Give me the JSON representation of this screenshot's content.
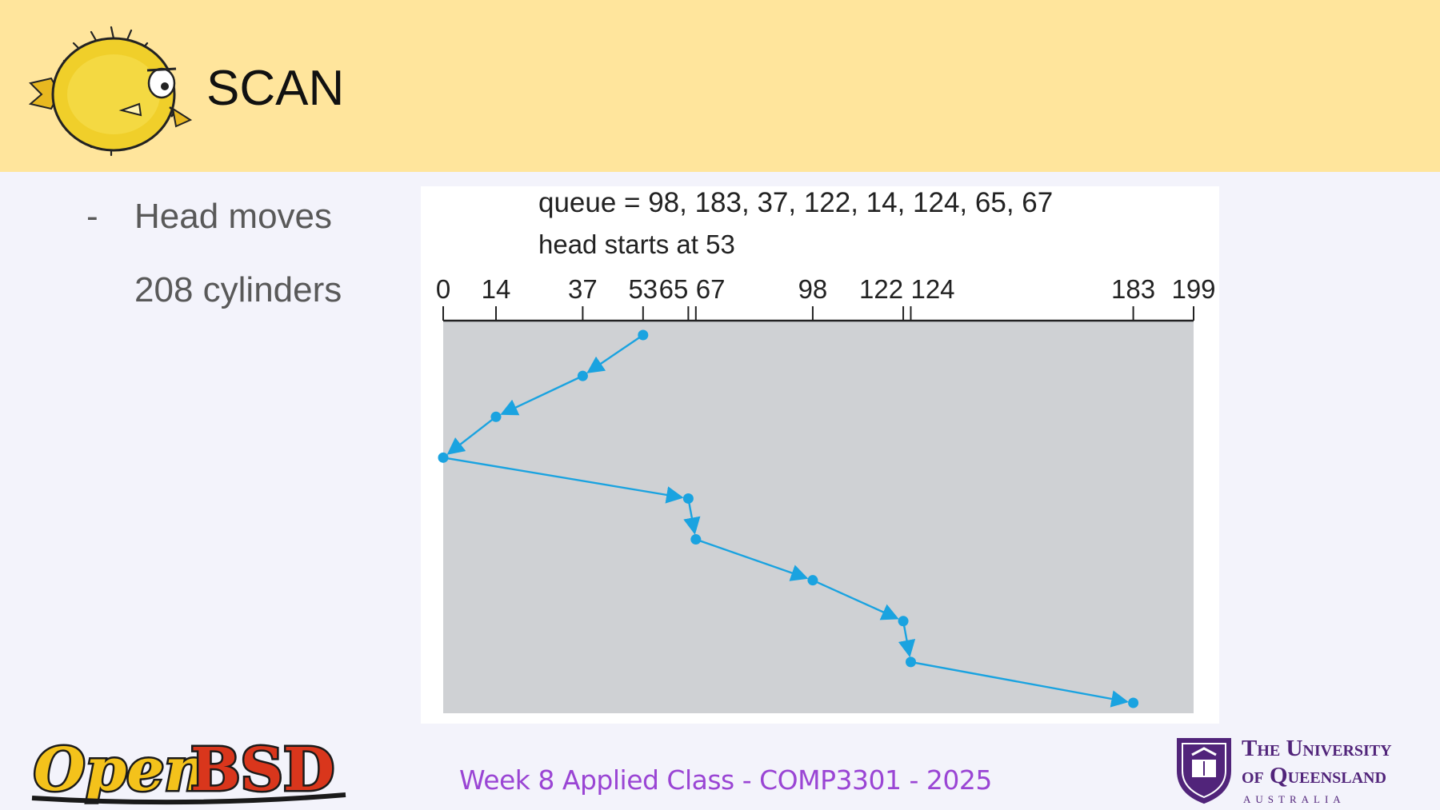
{
  "slide": {
    "title": "SCAN",
    "bullets": [
      {
        "marker": "-",
        "text": "Head moves"
      },
      {
        "marker": "",
        "text": "208 cylinders"
      }
    ]
  },
  "footer": {
    "text": "Week 8 Applied Class - COMP3301 - 2025",
    "openbsd_logo": "OpenBSD",
    "university": {
      "line1": "The University",
      "line2": "of Queensland",
      "line3": "AUSTRALIA"
    }
  },
  "chart_data": {
    "type": "line",
    "queue_label": "queue = 98, 183, 37, 122, 14, 124, 65, 67",
    "head_label": "head starts at 53",
    "axis_ticks": [
      0,
      14,
      37,
      53,
      65,
      67,
      98,
      122,
      124,
      183,
      199
    ],
    "axis_tick_labels": [
      "0",
      "14",
      "37",
      "53",
      "65",
      "67",
      "98",
      "122",
      "124",
      "183",
      "199"
    ],
    "xlim": [
      0,
      199
    ],
    "path": [
      53,
      37,
      14,
      0,
      65,
      67,
      98,
      122,
      124,
      183
    ],
    "colors": {
      "line": "#1aa3e0",
      "plot_bg": "#cfd1d4",
      "axis": "#222222"
    }
  }
}
